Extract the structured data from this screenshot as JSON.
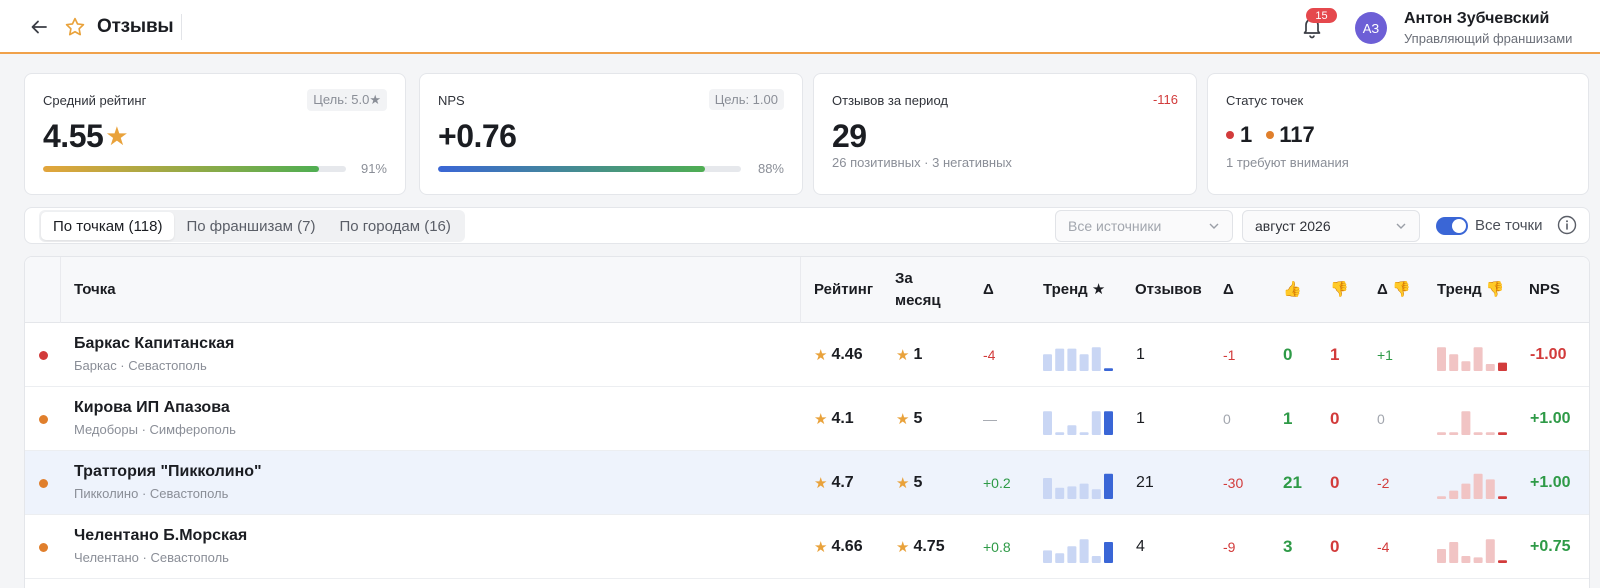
{
  "header": {
    "title": "Отзывы",
    "notifications_count": "15",
    "user": {
      "initials": "АЗ",
      "name": "Антон Зубчевский",
      "role": "Управляющий франшизами"
    }
  },
  "cards": {
    "rating": {
      "label": "Средний рейтинг",
      "target": "Цель: 5.0★",
      "value": "4.55",
      "percent": "91%",
      "progress": 0.91
    },
    "nps": {
      "label": "NPS",
      "target": "Цель: 1.00",
      "value": "+0.76",
      "percent": "88%",
      "progress": 0.88
    },
    "reviews": {
      "label": "Отзывов за период",
      "delta": "-116",
      "value": "29",
      "sub": "26 позитивных · 3 негативных"
    },
    "status": {
      "label": "Статус точек",
      "red_count": "1",
      "orange_count": "117",
      "sub": "1 требуют внимания"
    }
  },
  "filters": {
    "tabs": [
      {
        "label": "По точкам (118)",
        "active": true
      },
      {
        "label": "По франшизам (7)",
        "active": false
      },
      {
        "label": "По городам (16)",
        "active": false
      }
    ],
    "source_placeholder": "Все источники",
    "period": "август 2026",
    "toggle_label": "Все точки",
    "toggle_on": true
  },
  "table": {
    "headers": {
      "point": "Точка",
      "rating": "Рейтинг",
      "month_line1": "За",
      "month_line2": "месяц",
      "delta": "Δ",
      "trend_star": "Тренд ★",
      "reviews": "Отзывов",
      "delta2": "Δ",
      "thumbs_up": "👍",
      "thumbs_down": "👎",
      "delta_down": "Δ 👎",
      "trend_down": "Тренд 👎",
      "nps": "NPS"
    },
    "rows": [
      {
        "status": "red",
        "name": "Баркас Капитанская",
        "sub": "Баркас · Севастополь",
        "rating": "4.46",
        "month": "1",
        "delta": "-4",
        "delta_kind": "neg",
        "trend": [
          0.6,
          0.8,
          0.8,
          0.6,
          0.85,
          0.1
        ],
        "reviews": "1",
        "reviews_delta": "-1",
        "reviews_delta_kind": "neg",
        "up": "0",
        "down": "1",
        "down_delta": "+1",
        "down_delta_kind": "pos",
        "trend_down": [
          0.85,
          0.6,
          0.35,
          0.85,
          0.25,
          0.3
        ],
        "nps": "-1.00",
        "nps_kind": "neg",
        "highlight": false
      },
      {
        "status": "orange",
        "name": "Кирова ИП Апазова",
        "sub": "Медоборы · Симферополь",
        "rating": "4.1",
        "month": "5",
        "delta": "—",
        "delta_kind": "zero",
        "trend": [
          0.85,
          0.1,
          0.35,
          0.1,
          0.85,
          0.85
        ],
        "reviews": "1",
        "reviews_delta": "0",
        "reviews_delta_kind": "zero",
        "up": "1",
        "down": "0",
        "down_delta": "0",
        "down_delta_kind": "zero",
        "trend_down": [
          0.1,
          0.1,
          0.85,
          0.1,
          0.1,
          0.1
        ],
        "nps": "+1.00",
        "nps_kind": "pos",
        "highlight": false
      },
      {
        "status": "orange",
        "name": "Траттория \"Пикколино\"",
        "sub": "Пикколино · Севастополь",
        "rating": "4.7",
        "month": "5",
        "delta": "+0.2",
        "delta_kind": "pos",
        "trend": [
          0.75,
          0.4,
          0.45,
          0.55,
          0.35,
          0.9
        ],
        "reviews": "21",
        "reviews_delta": "-30",
        "reviews_delta_kind": "neg",
        "up": "21",
        "down": "0",
        "down_delta": "-2",
        "down_delta_kind": "neg",
        "trend_down": [
          0.1,
          0.3,
          0.55,
          0.9,
          0.7,
          0.1
        ],
        "nps": "+1.00",
        "nps_kind": "pos",
        "highlight": true
      },
      {
        "status": "orange",
        "name": "Челентано Б.Морская",
        "sub": "Челентано · Севастополь",
        "rating": "4.66",
        "month": "4.75",
        "delta": "+0.8",
        "delta_kind": "pos",
        "trend": [
          0.45,
          0.35,
          0.6,
          0.85,
          0.25,
          0.75
        ],
        "reviews": "4",
        "reviews_delta": "-9",
        "reviews_delta_kind": "neg",
        "up": "3",
        "down": "0",
        "down_delta": "-4",
        "down_delta_kind": "neg",
        "trend_down": [
          0.5,
          0.75,
          0.25,
          0.2,
          0.85,
          0.1
        ],
        "nps": "+0.75",
        "nps_kind": "pos",
        "highlight": false
      }
    ]
  },
  "colors": {
    "accent": "#3a66d6",
    "header_border": "#f0a14b",
    "star": "#e9a23b",
    "positive": "#2e9a47",
    "negative": "#d23b3b",
    "status_red": "#d23b3b",
    "status_orange": "#e07f2c"
  }
}
